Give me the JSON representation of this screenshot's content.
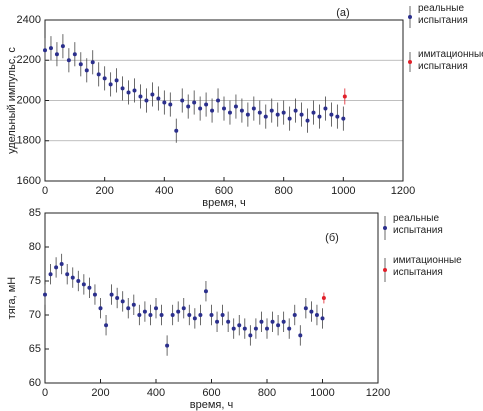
{
  "chart_data": [
    {
      "type": "scatter",
      "annotation": "(а)",
      "x_label": "время, ч",
      "y_label": "удельный импульс, с",
      "xlim": [
        0,
        1200
      ],
      "xticks": [
        0,
        200,
        400,
        600,
        800,
        1000,
        1200
      ],
      "ylim": [
        1600,
        2400
      ],
      "yticks": [
        1600,
        1800,
        2000,
        2200,
        2400
      ],
      "grid": true,
      "series": [
        {
          "name": "реальные испытания",
          "color": "#2b2f8c",
          "x": [
            0,
            20,
            40,
            60,
            80,
            100,
            120,
            140,
            160,
            180,
            200,
            220,
            240,
            260,
            280,
            300,
            320,
            340,
            360,
            380,
            400,
            420,
            440,
            460,
            480,
            500,
            520,
            540,
            560,
            580,
            600,
            620,
            640,
            660,
            680,
            700,
            720,
            740,
            760,
            780,
            800,
            820,
            840,
            860,
            880,
            900,
            920,
            940,
            960,
            980,
            1000
          ],
          "values": [
            2250,
            2260,
            2230,
            2270,
            2200,
            2230,
            2180,
            2150,
            2190,
            2130,
            2110,
            2080,
            2100,
            2060,
            2040,
            2050,
            2020,
            2000,
            2030,
            2010,
            1990,
            1980,
            1850,
            2000,
            1970,
            1990,
            1960,
            1980,
            1950,
            2000,
            1960,
            1940,
            1970,
            1950,
            1930,
            1960,
            1940,
            1920,
            1950,
            1930,
            1940,
            1910,
            1950,
            1930,
            1900,
            1940,
            1920,
            1960,
            1930,
            1920,
            1910
          ],
          "error": 60
        },
        {
          "name": "имитационные испытания",
          "color": "#e0202a",
          "x": [
            1005
          ],
          "values": [
            2020
          ],
          "error": 40
        }
      ]
    },
    {
      "type": "scatter",
      "annotation": "(б)",
      "x_label": "время, ч",
      "y_label": "тяга, мН",
      "xlim": [
        0,
        1200
      ],
      "xticks": [
        0,
        200,
        400,
        600,
        800,
        1000,
        1200
      ],
      "ylim": [
        60,
        85
      ],
      "yticks": [
        60,
        65,
        70,
        75,
        80,
        85
      ],
      "grid": false,
      "series": [
        {
          "name": "реальные испытания",
          "color": "#2b2f8c",
          "x": [
            0,
            20,
            40,
            60,
            80,
            100,
            120,
            140,
            160,
            180,
            200,
            220,
            240,
            260,
            280,
            300,
            320,
            340,
            360,
            380,
            400,
            420,
            440,
            460,
            480,
            500,
            520,
            540,
            560,
            580,
            600,
            620,
            640,
            660,
            680,
            700,
            720,
            740,
            760,
            780,
            800,
            820,
            840,
            860,
            880,
            900,
            920,
            940,
            960,
            980,
            1000
          ],
          "values": [
            73,
            76,
            77,
            77.5,
            76,
            75.5,
            75,
            74.5,
            74,
            73,
            71,
            68.5,
            73,
            72.5,
            72,
            71,
            71.5,
            70,
            70.5,
            70,
            71,
            70,
            65.5,
            70,
            70.5,
            71,
            70,
            69.5,
            70,
            73.5,
            70,
            69,
            70,
            69,
            68,
            68.5,
            68,
            67,
            68,
            69,
            68,
            69,
            68.5,
            69,
            68,
            70,
            67,
            71,
            70.5,
            70,
            69.5
          ],
          "error": 1.5
        },
        {
          "name": "имитационные испытания",
          "color": "#e0202a",
          "x": [
            1005
          ],
          "values": [
            72.5
          ],
          "error": 0.8
        }
      ]
    }
  ]
}
